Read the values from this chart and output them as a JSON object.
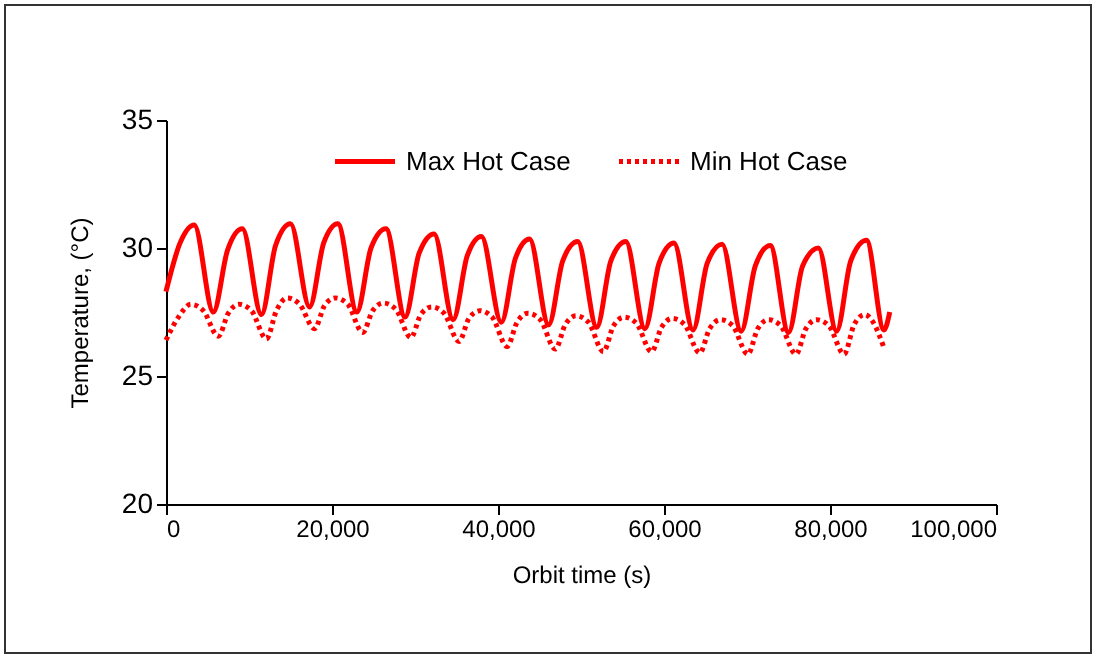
{
  "chart_data": {
    "type": "line",
    "xlabel": "Orbit time (s)",
    "ylabel": "Temperature, (°C)",
    "xlim": [
      0,
      100000
    ],
    "xticks": [
      {
        "value": 0,
        "label": "0"
      },
      {
        "value": 20000,
        "label": "20,000"
      },
      {
        "value": 40000,
        "label": "40,000"
      },
      {
        "value": 60000,
        "label": "60,000"
      },
      {
        "value": 80000,
        "label": "80,000"
      },
      {
        "value": 100000,
        "label": "100,000"
      }
    ],
    "ylim": [
      20,
      35
    ],
    "yticks": [
      20,
      25,
      30,
      35
    ],
    "grid": false,
    "legend": "top",
    "marker": "none",
    "series": [
      {
        "name": "Max Hot Case",
        "color": "#ff0000",
        "line_style": "solid",
        "x": [
          0,
          1700,
          3400,
          5700,
          7400,
          9200,
          11500,
          13200,
          15000,
          17300,
          19000,
          20700,
          23000,
          24700,
          26500,
          28800,
          30500,
          32300,
          34600,
          36300,
          38000,
          40400,
          42100,
          43800,
          46100,
          47800,
          49600,
          51900,
          53600,
          55400,
          57700,
          59400,
          61200,
          63500,
          65200,
          67000,
          69300,
          71000,
          72800,
          75000,
          76700,
          78600,
          80800,
          82500,
          84400,
          86500,
          87200
        ],
        "values": [
          28.3,
          30.2,
          30.9,
          27.5,
          29.9,
          30.75,
          27.4,
          30.1,
          30.95,
          27.7,
          30.2,
          30.95,
          27.5,
          30.0,
          30.75,
          27.3,
          29.8,
          30.55,
          27.2,
          29.7,
          30.45,
          27.1,
          29.6,
          30.35,
          27.0,
          29.5,
          30.25,
          26.9,
          29.5,
          30.25,
          26.85,
          29.4,
          30.2,
          26.8,
          29.4,
          30.15,
          26.75,
          29.3,
          30.1,
          26.7,
          29.3,
          30.0,
          26.75,
          29.5,
          30.3,
          26.8,
          27.5
        ]
      },
      {
        "name": "Min Hot Case",
        "color": "#ff0000",
        "line_style": "dotted",
        "x": [
          0,
          1500,
          3000,
          4500,
          6300,
          7500,
          8800,
          10300,
          12100,
          13300,
          14600,
          16100,
          17900,
          19100,
          20400,
          21900,
          23700,
          24900,
          26200,
          27700,
          29500,
          30700,
          32000,
          33500,
          35300,
          36500,
          37800,
          39300,
          41100,
          42300,
          43600,
          45100,
          46900,
          48100,
          49400,
          50900,
          52700,
          53900,
          55200,
          56700,
          58500,
          59700,
          61000,
          62500,
          64300,
          65500,
          66800,
          68300,
          70100,
          71300,
          72600,
          74100,
          75900,
          77100,
          78400,
          79900,
          81700,
          82900,
          84200,
          85200,
          86500
        ],
        "values": [
          26.4,
          27.3,
          27.8,
          27.55,
          26.55,
          27.45,
          27.8,
          27.55,
          26.45,
          27.55,
          28.05,
          27.8,
          26.85,
          27.75,
          28.05,
          27.8,
          26.7,
          27.55,
          27.85,
          27.6,
          26.5,
          27.4,
          27.7,
          27.45,
          26.35,
          27.25,
          27.55,
          27.3,
          26.15,
          27.1,
          27.45,
          27.2,
          26.05,
          27.0,
          27.35,
          27.1,
          25.95,
          26.95,
          27.3,
          27.05,
          25.95,
          26.9,
          27.25,
          27.0,
          25.9,
          26.85,
          27.2,
          26.95,
          25.85,
          26.85,
          27.2,
          26.95,
          25.85,
          26.85,
          27.2,
          26.95,
          25.85,
          27.0,
          27.4,
          27.1,
          26.1
        ]
      }
    ]
  }
}
